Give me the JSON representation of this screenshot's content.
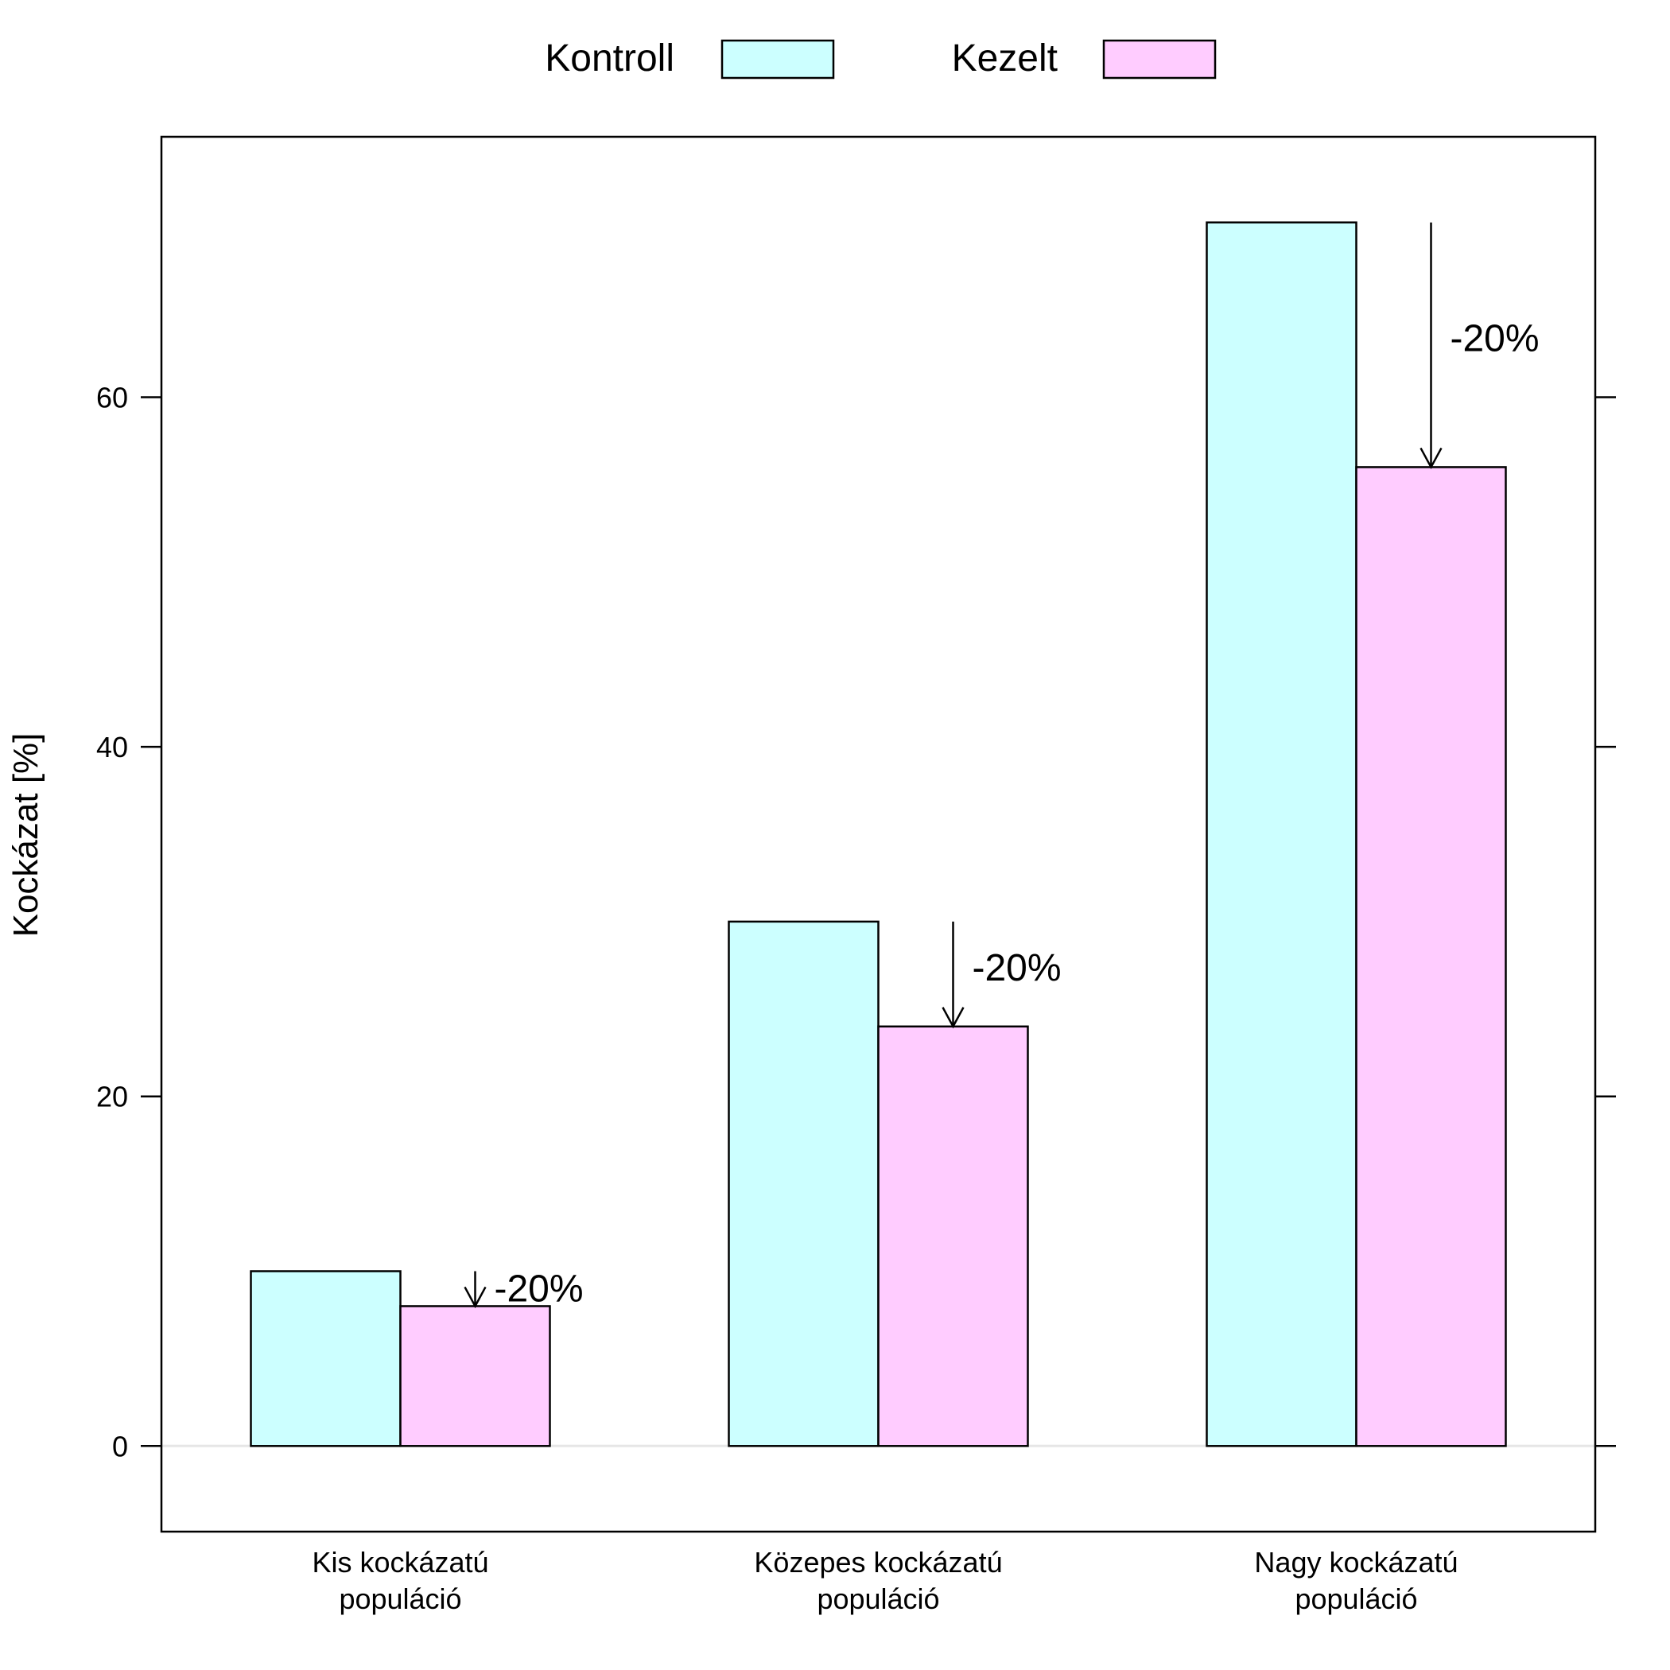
{
  "chart_data": {
    "type": "bar",
    "title": "",
    "xlabel": "",
    "ylabel": "Kockázat [%]",
    "ylim": [
      -4.9,
      74.9
    ],
    "yticks": [
      0,
      20,
      40,
      60
    ],
    "categories": [
      [
        "Kis kockázatú",
        "populáció"
      ],
      [
        "Közepes kockázatú",
        "populáció"
      ],
      [
        "Nagy kockázatú",
        "populáció"
      ]
    ],
    "series": [
      {
        "name": "Kontroll",
        "color": "#ccffff",
        "values": [
          10,
          30,
          70
        ]
      },
      {
        "name": "Kezelt",
        "color": "#ffccff",
        "values": [
          8,
          24,
          56
        ]
      }
    ],
    "annotations": [
      {
        "category_index": 0,
        "from": 10,
        "to": 8,
        "label": "-20%"
      },
      {
        "category_index": 1,
        "from": 30,
        "to": 24,
        "label": "-20%"
      },
      {
        "category_index": 2,
        "from": 70,
        "to": 56,
        "label": "-20%"
      }
    ],
    "legend": "top",
    "grid": false
  }
}
